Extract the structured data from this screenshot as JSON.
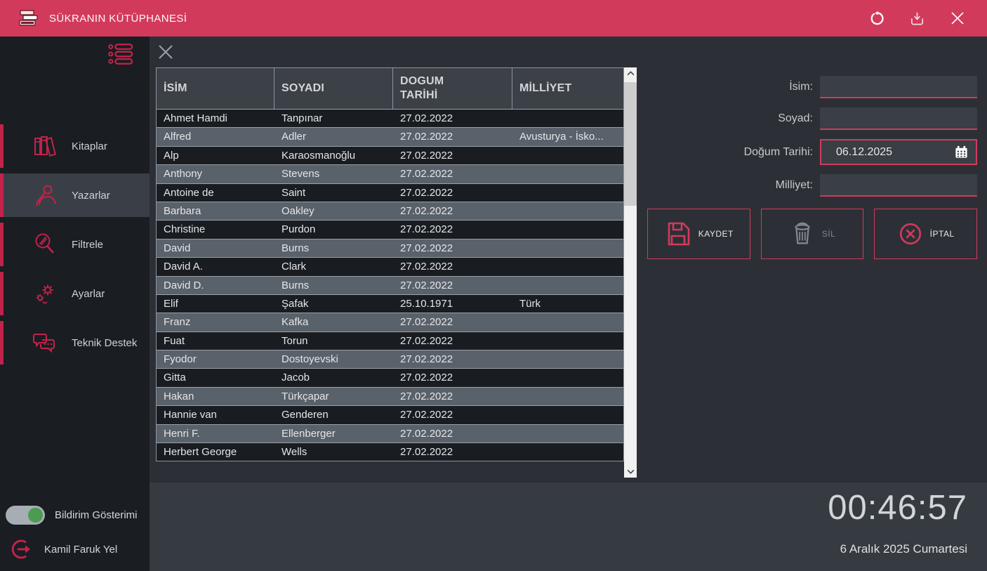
{
  "titlebar": {
    "title": "SÜKRANIN KÜTÜPHANESİ",
    "icons": [
      "books-logo-icon",
      "refresh-icon",
      "download-icon",
      "close-icon"
    ]
  },
  "sidebar": {
    "menu_icon": "list-menu-icon",
    "items": [
      {
        "label": "Kitaplar",
        "icon": "books-icon",
        "selected": false
      },
      {
        "label": "Yazarlar",
        "icon": "author-icon",
        "selected": true
      },
      {
        "label": "Filtrele",
        "icon": "filter-search-icon",
        "selected": false
      },
      {
        "label": "Ayarlar",
        "icon": "settings-icon",
        "selected": false
      },
      {
        "label": "Teknik Destek",
        "icon": "support-chat-icon",
        "selected": false
      }
    ],
    "notification_toggle": {
      "label": "Bildirim Gösterimi",
      "state": "on"
    },
    "user": {
      "name": "Kamil Faruk Yel",
      "icon": "logout-icon"
    }
  },
  "content": {
    "close_icon": "close-icon"
  },
  "table": {
    "columns": [
      "İSİM",
      "SOYADI",
      "DOGUM TARİHİ",
      "MİLLİYET"
    ],
    "rows": [
      [
        "Ahmet Hamdi",
        "Tanpınar",
        "27.02.2022",
        ""
      ],
      [
        "Alfred",
        "Adler",
        "27.02.2022",
        "Avusturya - İsko..."
      ],
      [
        "Alp",
        "Karaosmanoğlu",
        "27.02.2022",
        ""
      ],
      [
        "Anthony",
        "Stevens",
        "27.02.2022",
        ""
      ],
      [
        "Antoine de",
        "Saint",
        "27.02.2022",
        ""
      ],
      [
        "Barbara",
        "Oakley",
        "27.02.2022",
        ""
      ],
      [
        "Christine",
        "Purdon",
        "27.02.2022",
        ""
      ],
      [
        "David",
        "Burns",
        "27.02.2022",
        ""
      ],
      [
        "David A.",
        "Clark",
        "27.02.2022",
        ""
      ],
      [
        "David D.",
        "Burns",
        "27.02.2022",
        ""
      ],
      [
        "Elif",
        "Şafak",
        "25.10.1971",
        "Türk"
      ],
      [
        "Franz",
        "Kafka",
        "27.02.2022",
        ""
      ],
      [
        "Fuat",
        "Torun",
        "27.02.2022",
        ""
      ],
      [
        "Fyodor",
        "Dostoyevski",
        "27.02.2022",
        ""
      ],
      [
        "Gitta",
        "Jacob",
        "27.02.2022",
        ""
      ],
      [
        "Hakan",
        "Türkçapar",
        "27.02.2022",
        ""
      ],
      [
        "Hannie van",
        "Genderen",
        "27.02.2022",
        ""
      ],
      [
        "Henri F.",
        "Ellenberger",
        "27.02.2022",
        ""
      ],
      [
        "Herbert George",
        "Wells",
        "27.02.2022",
        ""
      ]
    ]
  },
  "form": {
    "isim_label": "İsim:",
    "soyad_label": "Soyad:",
    "dogum_label": "Doğum Tarihi:",
    "milliyet_label": "Milliyet:",
    "isim_value": "",
    "soyad_value": "",
    "dogum_value": "06.12.2025",
    "milliyet_value": "",
    "calendar_icon": "calendar-icon",
    "buttons": {
      "save": {
        "label": "KAYDET",
        "icon": "save-floppy-icon",
        "enabled": true
      },
      "delete": {
        "label": "SİL",
        "icon": "trash-icon",
        "enabled": false
      },
      "cancel": {
        "label": "İPTAL",
        "icon": "cancel-circle-icon",
        "enabled": true
      }
    }
  },
  "footer": {
    "time": "00:46:57",
    "date": "6 Aralık 2025 Cumartesi"
  },
  "colors": {
    "accent": "#d23a5c",
    "titlebar": "#d23a5c",
    "sidebar_bg": "#1a1d22",
    "main_bg": "#2c3036",
    "header_bg": "#3c4147",
    "row_dark": "#191c20",
    "row_light": "#59616a",
    "toggle_on_green": "#4b9b50",
    "scrollbar_track": "#f1f1f1"
  }
}
